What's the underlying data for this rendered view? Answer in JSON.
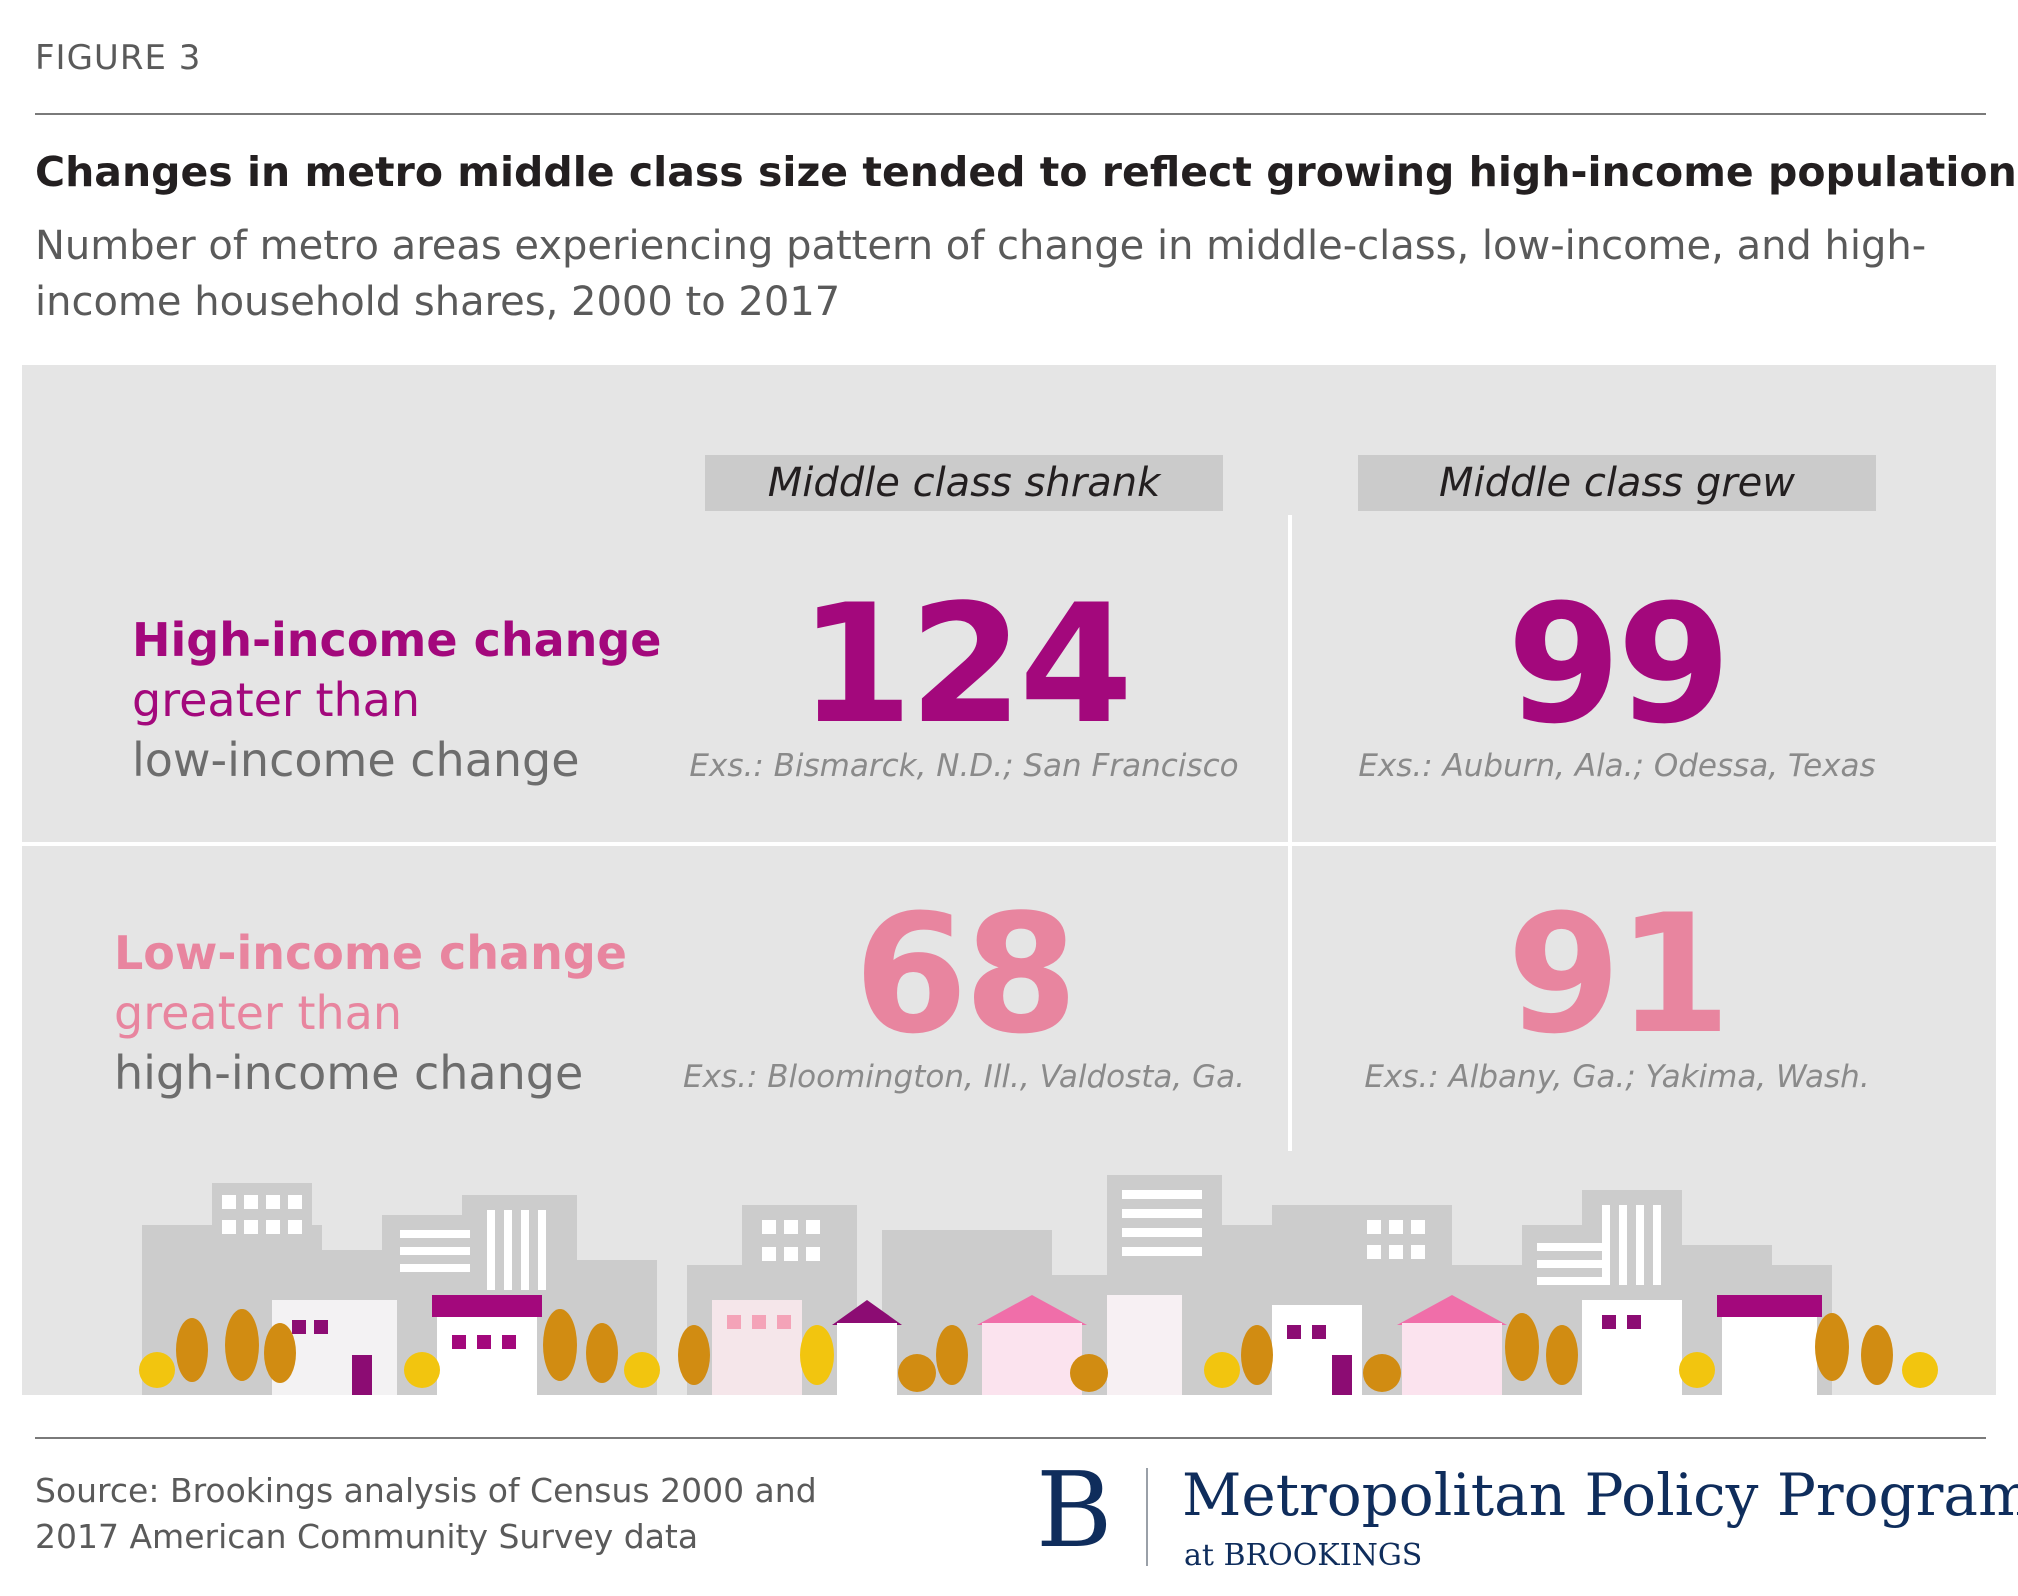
{
  "figure_label": "FIGURE 3",
  "title": "Changes in metro middle class size tended to reflect growing high-income populations",
  "subtitle": "Number of metro areas experiencing pattern of change in middle-class, low-income, and high-income household shares, 2000 to 2017",
  "colors": {
    "high": "#a3087c",
    "low": "#e8859f",
    "gray": "#6d6d6d",
    "panel": "#e5e5e5"
  },
  "chart_data": {
    "type": "table",
    "columns": [
      "Middle class shrank",
      "Middle class grew"
    ],
    "rows": [
      {
        "label_strong": "High-income change",
        "label_mid": "greater than",
        "label_rest": "low-income change",
        "values": [
          124,
          99
        ],
        "examples": [
          "Exs.: Bismarck, N.D.; San Francisco",
          "Exs.: Auburn, Ala.; Odessa, Texas"
        ]
      },
      {
        "label_strong": "Low-income change",
        "label_mid": "greater than",
        "label_rest": "high-income change",
        "values": [
          68,
          91
        ],
        "examples": [
          "Exs.: Bloomington, Ill., Valdosta, Ga.",
          "Exs.: Albany, Ga.; Yakima, Wash."
        ]
      }
    ]
  },
  "source": {
    "line1": "Source: Brookings analysis of Census 2000 and",
    "line2": "2017 American Community Survey data"
  },
  "logo": {
    "letter": "B",
    "program": "Metropolitan Policy Program",
    "at": "at BROOKINGS"
  }
}
